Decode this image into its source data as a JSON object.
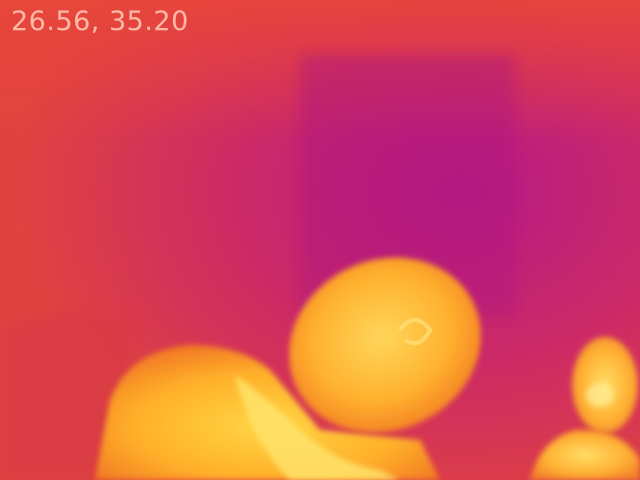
{
  "overlay": {
    "temperature_readout": "26.56, 35.20"
  },
  "palette": {
    "cool": "#b5168a",
    "background": "#d8344f",
    "warm": "#f56f1c",
    "hot": "#ffd23a",
    "hottest": "#fff7a0"
  }
}
